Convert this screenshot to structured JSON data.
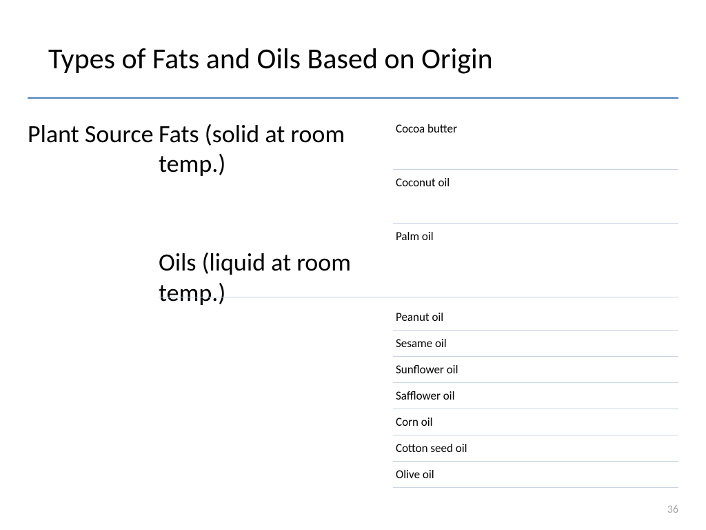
{
  "title": "Types of Fats and Oils Based on Origin",
  "source_label": "Plant Source",
  "categories": {
    "fats": {
      "label": "Fats (solid at room temp.)",
      "items": [
        "Cocoa butter",
        "Coconut oil",
        "Palm oil"
      ]
    },
    "oils": {
      "label": "Oils (liquid at room temp.)",
      "items": [
        "Peanut oil",
        "Sesame oil",
        "Sunflower oil",
        "Safflower oil",
        "Corn oil",
        "Cotton seed oil",
        "Olive oil"
      ]
    }
  },
  "page_number": "36",
  "style": {
    "divider_color": "#4f81bd",
    "item_border_color": "#c8d4e3",
    "page_number_color": "#a6a6a6",
    "title_fontsize": 42,
    "category_fontsize": 36,
    "item_fontsize": 17,
    "background": "#ffffff"
  }
}
